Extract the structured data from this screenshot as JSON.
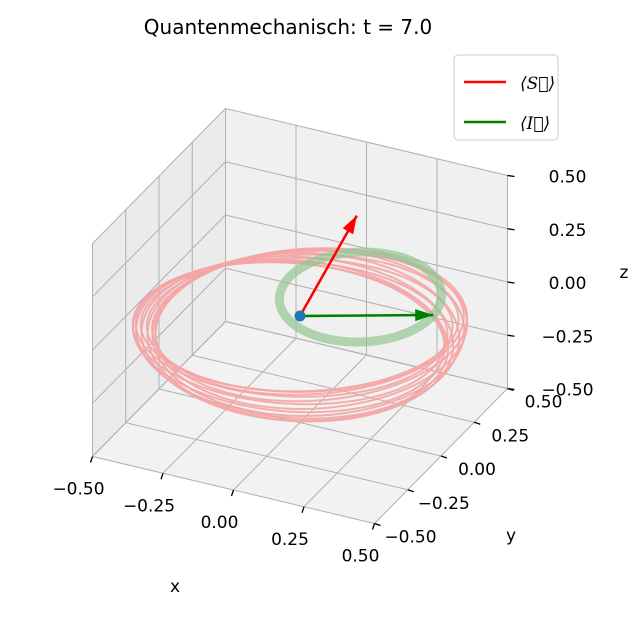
{
  "title": "Quantenmechanisch:   t = 7.0",
  "colors": {
    "S": "#ff0000",
    "I": "#008000",
    "S_trace": "#f4a5a5",
    "I_trace": "#93c593",
    "origin": "#1f77b4"
  },
  "chart_data": {
    "type": "3d-line",
    "title": "Quantenmechanisch:   t = 7.0",
    "xlabel": "x",
    "ylabel": "y",
    "zlabel": "z",
    "xlim": [
      -0.5,
      0.5
    ],
    "ylim": [
      -0.5,
      0.5
    ],
    "zlim": [
      -0.5,
      0.5
    ],
    "xticks": [
      "−0.50",
      "−0.25",
      "0.00",
      "0.25",
      "0.50"
    ],
    "yticks": [
      "−0.50",
      "−0.25",
      "0.00",
      "0.25",
      "0.50"
    ],
    "zticks": [
      "−0.50",
      "−0.25",
      "0.00",
      "0.25",
      "0.50"
    ],
    "grid": true,
    "legend_position": "top-right",
    "legend": [
      {
        "key": "S",
        "label": "⟨S⃗⟩"
      },
      {
        "key": "I",
        "label": "⟨I⃗⟩"
      }
    ],
    "origin_point": [
      0,
      0,
      0
    ],
    "vectors": {
      "S": [
        0.06,
        0.3,
        0.3
      ],
      "I": [
        0.35,
        0.26,
        -0.05
      ]
    },
    "S_trace": {
      "loops": 12,
      "radius": 0.5,
      "center_z": -0.07
    },
    "I_trace": {
      "radius": 0.26,
      "center": [
        0.12,
        0.2,
        0.0
      ]
    }
  }
}
